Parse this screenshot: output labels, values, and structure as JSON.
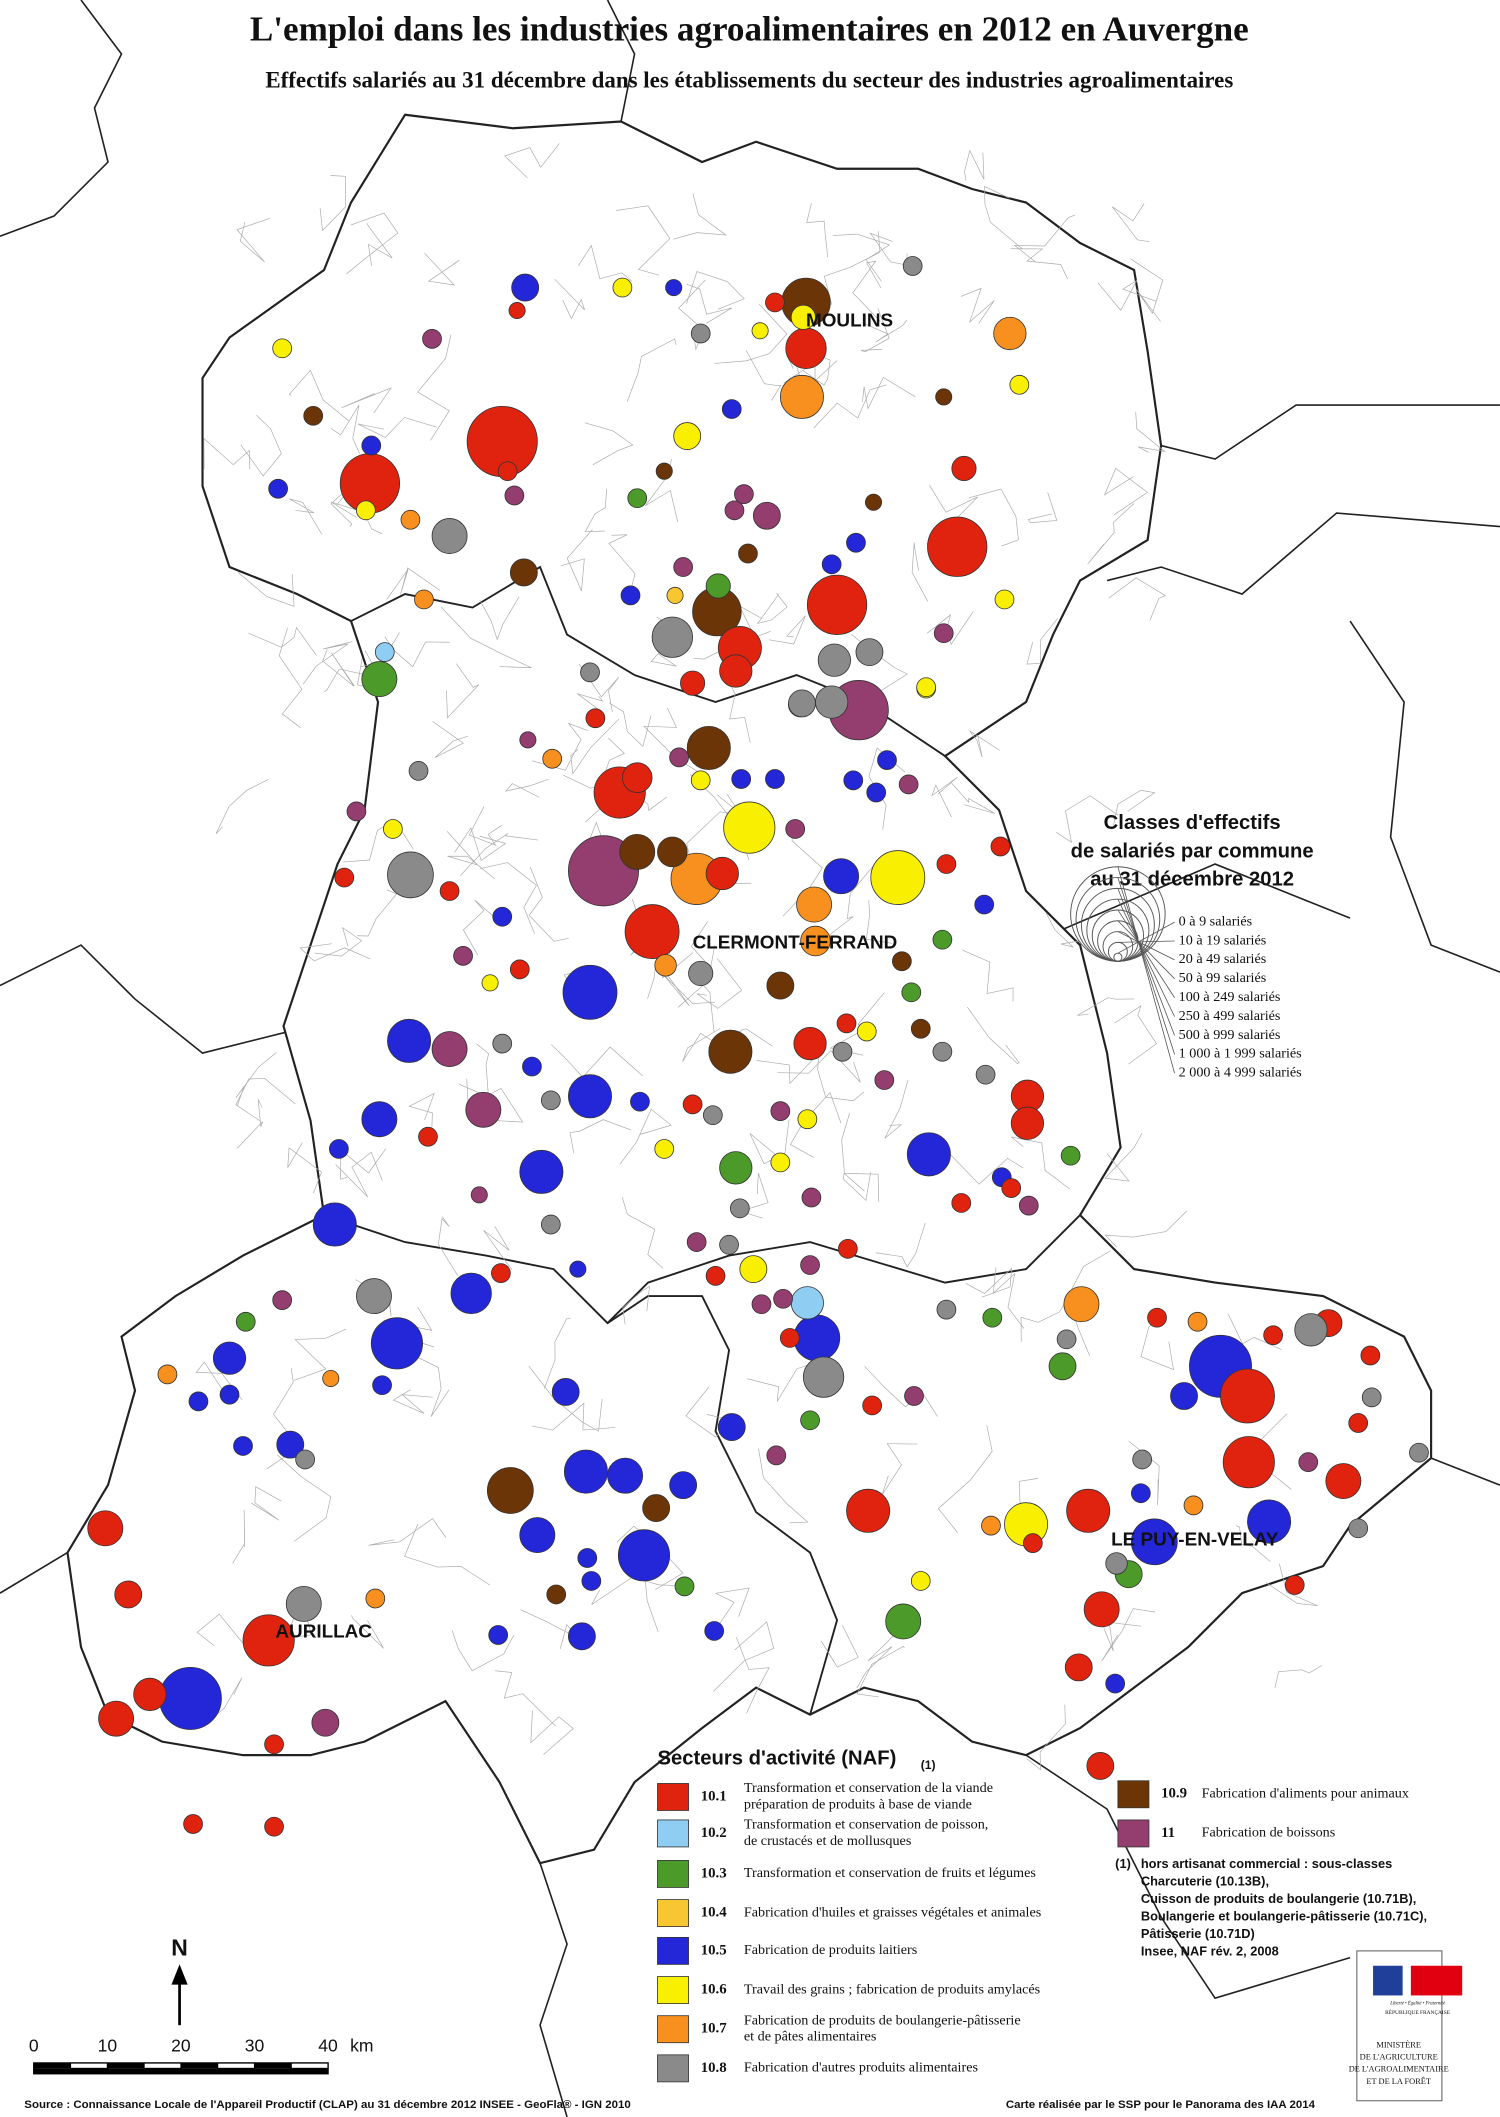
{
  "header": {
    "title": "L'emploi dans les industries agroalimentaires en 2012 en Auvergne",
    "subtitle": "Effectifs salariés au 31 décembre  dans les établissements du secteur des industries agroalimentaires"
  },
  "cities": [
    "MOULINS",
    "CLERMONT-FERRAND",
    "AURILLAC",
    "LE PUY-EN-VELAY"
  ],
  "size_legend": {
    "title": [
      "Classes d'effectifs",
      "de salariés par commune",
      "au 31 décembre 2012"
    ],
    "classes": [
      "0 à 9 salariés",
      "10 à 19 salariés",
      "20 à 49 salariés",
      "50 à 99 salariés",
      "100 à 249 salariés",
      "250 à 499 salariés",
      "500 à 999 salariés",
      "1 000 à 1 999 salariés",
      "2 000 à 4 999 salariés"
    ]
  },
  "sector_legend": {
    "title": "Secteurs d'activité (NAF)",
    "note_ref": "(1)",
    "items": [
      {
        "code": "10.1",
        "label": [
          "Transformation et conservation de la viande",
          "préparation de produits à base de viande"
        ],
        "color": "#e0230f"
      },
      {
        "code": "10.2",
        "label": [
          "Transformation et conservation de poisson,",
          "de crustacés et de mollusques"
        ],
        "color": "#8fcdf2"
      },
      {
        "code": "10.3",
        "label": [
          "Transformation et conservation de fruits et légumes"
        ],
        "color": "#4c9a2a"
      },
      {
        "code": "10.4",
        "label": [
          "Fabrication d'huiles et graisses végétales et animales"
        ],
        "color": "#f8c630"
      },
      {
        "code": "10.5",
        "label": [
          "Fabrication de produits laitiers"
        ],
        "color": "#2427d8"
      },
      {
        "code": "10.6",
        "label": [
          "Travail des grains ; fabrication de produits amylacés"
        ],
        "color": "#f8f000"
      },
      {
        "code": "10.7",
        "label": [
          "Fabrication de produits de boulangerie-pâtisserie",
          "et de pâtes alimentaires"
        ],
        "color": "#f7901e"
      },
      {
        "code": "10.8",
        "label": [
          "Fabrication d'autres produits alimentaires"
        ],
        "color": "#8a8a8a"
      },
      {
        "code": "10.9",
        "label": [
          "Fabrication d'aliments pour animaux"
        ],
        "color": "#6b3507"
      },
      {
        "code": "11",
        "label": [
          "Fabrication de boissons"
        ],
        "color": "#933e6e"
      }
    ]
  },
  "footnote": {
    "ref": "(1)",
    "lines": [
      "hors artisanat commercial : sous-classes",
      "Charcuterie (10.13B),",
      "Cuisson de produits de boulangerie (10.71B),",
      "Boulangerie et boulangerie-pâtisserie (10.71C),",
      "Pâtisserie (10.71D)",
      "Insee, NAF rév. 2, 2008"
    ]
  },
  "scale": {
    "ticks": [
      0,
      10,
      20,
      30,
      40
    ],
    "unit": "km"
  },
  "north": "N",
  "source": "Source : Connaissance Locale de l'Appareil Productif (CLAP) au 31 décembre 2012  INSEE - GeoFla® - IGN 2010",
  "credit": "Carte réalisée par le SSP pour le Panorama des IAA 2014",
  "ministry": {
    "motto": "Liberté • Égalité • Fraternité",
    "republic": "RÉPUBLIQUE FRANÇAISE",
    "name": [
      "MINISTÈRE",
      "DE L'AGRICULTURE",
      "DE L'AGROALIMENTAIRE",
      "ET DE LA FORÊT"
    ]
  }
}
